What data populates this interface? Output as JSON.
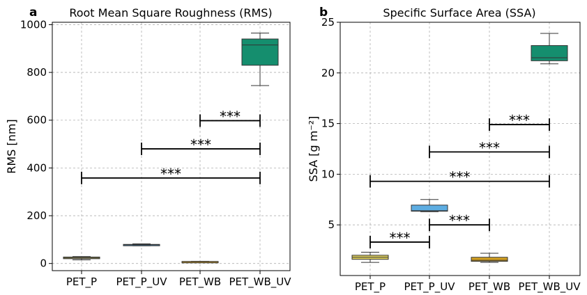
{
  "chart_data": [
    {
      "panel_label": "a",
      "type": "box",
      "title": "Root Mean Square Roughness (RMS)",
      "xlabel": "",
      "ylabel": "RMS [nm]",
      "categories": [
        "PET_P",
        "PET_P_UV",
        "PET_WB",
        "PET_WB_UV"
      ],
      "ylim": [
        -30,
        1010
      ],
      "yticks": [
        0,
        200,
        400,
        600,
        800,
        1000
      ],
      "grid": true,
      "boxes": [
        {
          "whislo": 15,
          "q1": 20,
          "med": 23,
          "q3": 27,
          "whishi": 29,
          "color": "#e2d35f"
        },
        {
          "whislo": 74,
          "q1": 76,
          "med": 78,
          "q3": 80,
          "whishi": 82,
          "color": "#5dade2"
        },
        {
          "whislo": 6,
          "q1": 7,
          "med": 8,
          "q3": 8.5,
          "whishi": 9,
          "color": "#d4a020"
        },
        {
          "whislo": 745,
          "q1": 830,
          "med": 915,
          "q3": 940,
          "whishi": 965,
          "color": "#158e6e"
        }
      ],
      "significance": [
        {
          "from": 0,
          "to": 3,
          "y": 358,
          "label": "***"
        },
        {
          "from": 1,
          "to": 3,
          "y": 480,
          "label": "***"
        },
        {
          "from": 2,
          "to": 3,
          "y": 598,
          "label": "***"
        }
      ]
    },
    {
      "panel_label": "b",
      "type": "box",
      "title": "Specific Surface Area (SSA)",
      "xlabel": "",
      "ylabel": "SSA [g m⁻²]",
      "categories": [
        "PET_P",
        "PET_P_UV",
        "PET_WB",
        "PET_WB_UV"
      ],
      "ylim": [
        0,
        25
      ],
      "yticks": [
        5,
        10,
        15,
        20,
        25
      ],
      "grid": true,
      "boxes": [
        {
          "whislo": 1.3,
          "q1": 1.6,
          "med": 1.8,
          "q3": 2.0,
          "whishi": 2.3,
          "color": "#e2d35f"
        },
        {
          "whislo": 6.3,
          "q1": 6.35,
          "med": 6.4,
          "q3": 6.95,
          "whishi": 7.5,
          "color": "#5dade2"
        },
        {
          "whislo": 1.3,
          "q1": 1.4,
          "med": 1.5,
          "q3": 1.8,
          "whishi": 2.2,
          "color": "#d4a020"
        },
        {
          "whislo": 20.9,
          "q1": 21.2,
          "med": 21.5,
          "q3": 22.7,
          "whishi": 23.9,
          "color": "#158e6e"
        }
      ],
      "significance": [
        {
          "from": 0,
          "to": 1,
          "y": 3.3,
          "label": "***"
        },
        {
          "from": 1,
          "to": 2,
          "y": 5.0,
          "label": "***"
        },
        {
          "from": 0,
          "to": 3,
          "y": 9.3,
          "label": "***"
        },
        {
          "from": 1,
          "to": 3,
          "y": 12.2,
          "label": "***"
        },
        {
          "from": 2,
          "to": 3,
          "y": 14.9,
          "label": "***"
        }
      ]
    }
  ]
}
